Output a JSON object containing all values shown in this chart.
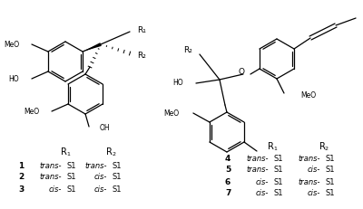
{
  "bg_color": "#ffffff",
  "fig_width": 4.0,
  "fig_height": 2.31,
  "dpi": 100,
  "left_rows": [
    {
      "num": "1",
      "r1_it": "trans",
      "r2_it": "trans"
    },
    {
      "num": "2",
      "r1_it": "trans",
      "r2_it": "cis"
    },
    {
      "num": "3",
      "r1_it": "cis",
      "r2_it": "cis"
    }
  ],
  "right_rows": [
    {
      "num": "4",
      "r1_it": "trans",
      "r2_it": "trans"
    },
    {
      "num": "5",
      "r1_it": "trans",
      "r2_it": "cis"
    },
    {
      "num": "6",
      "r1_it": "cis",
      "r2_it": "trans"
    },
    {
      "num": "7",
      "r1_it": "cis",
      "r2_it": "cis"
    }
  ]
}
